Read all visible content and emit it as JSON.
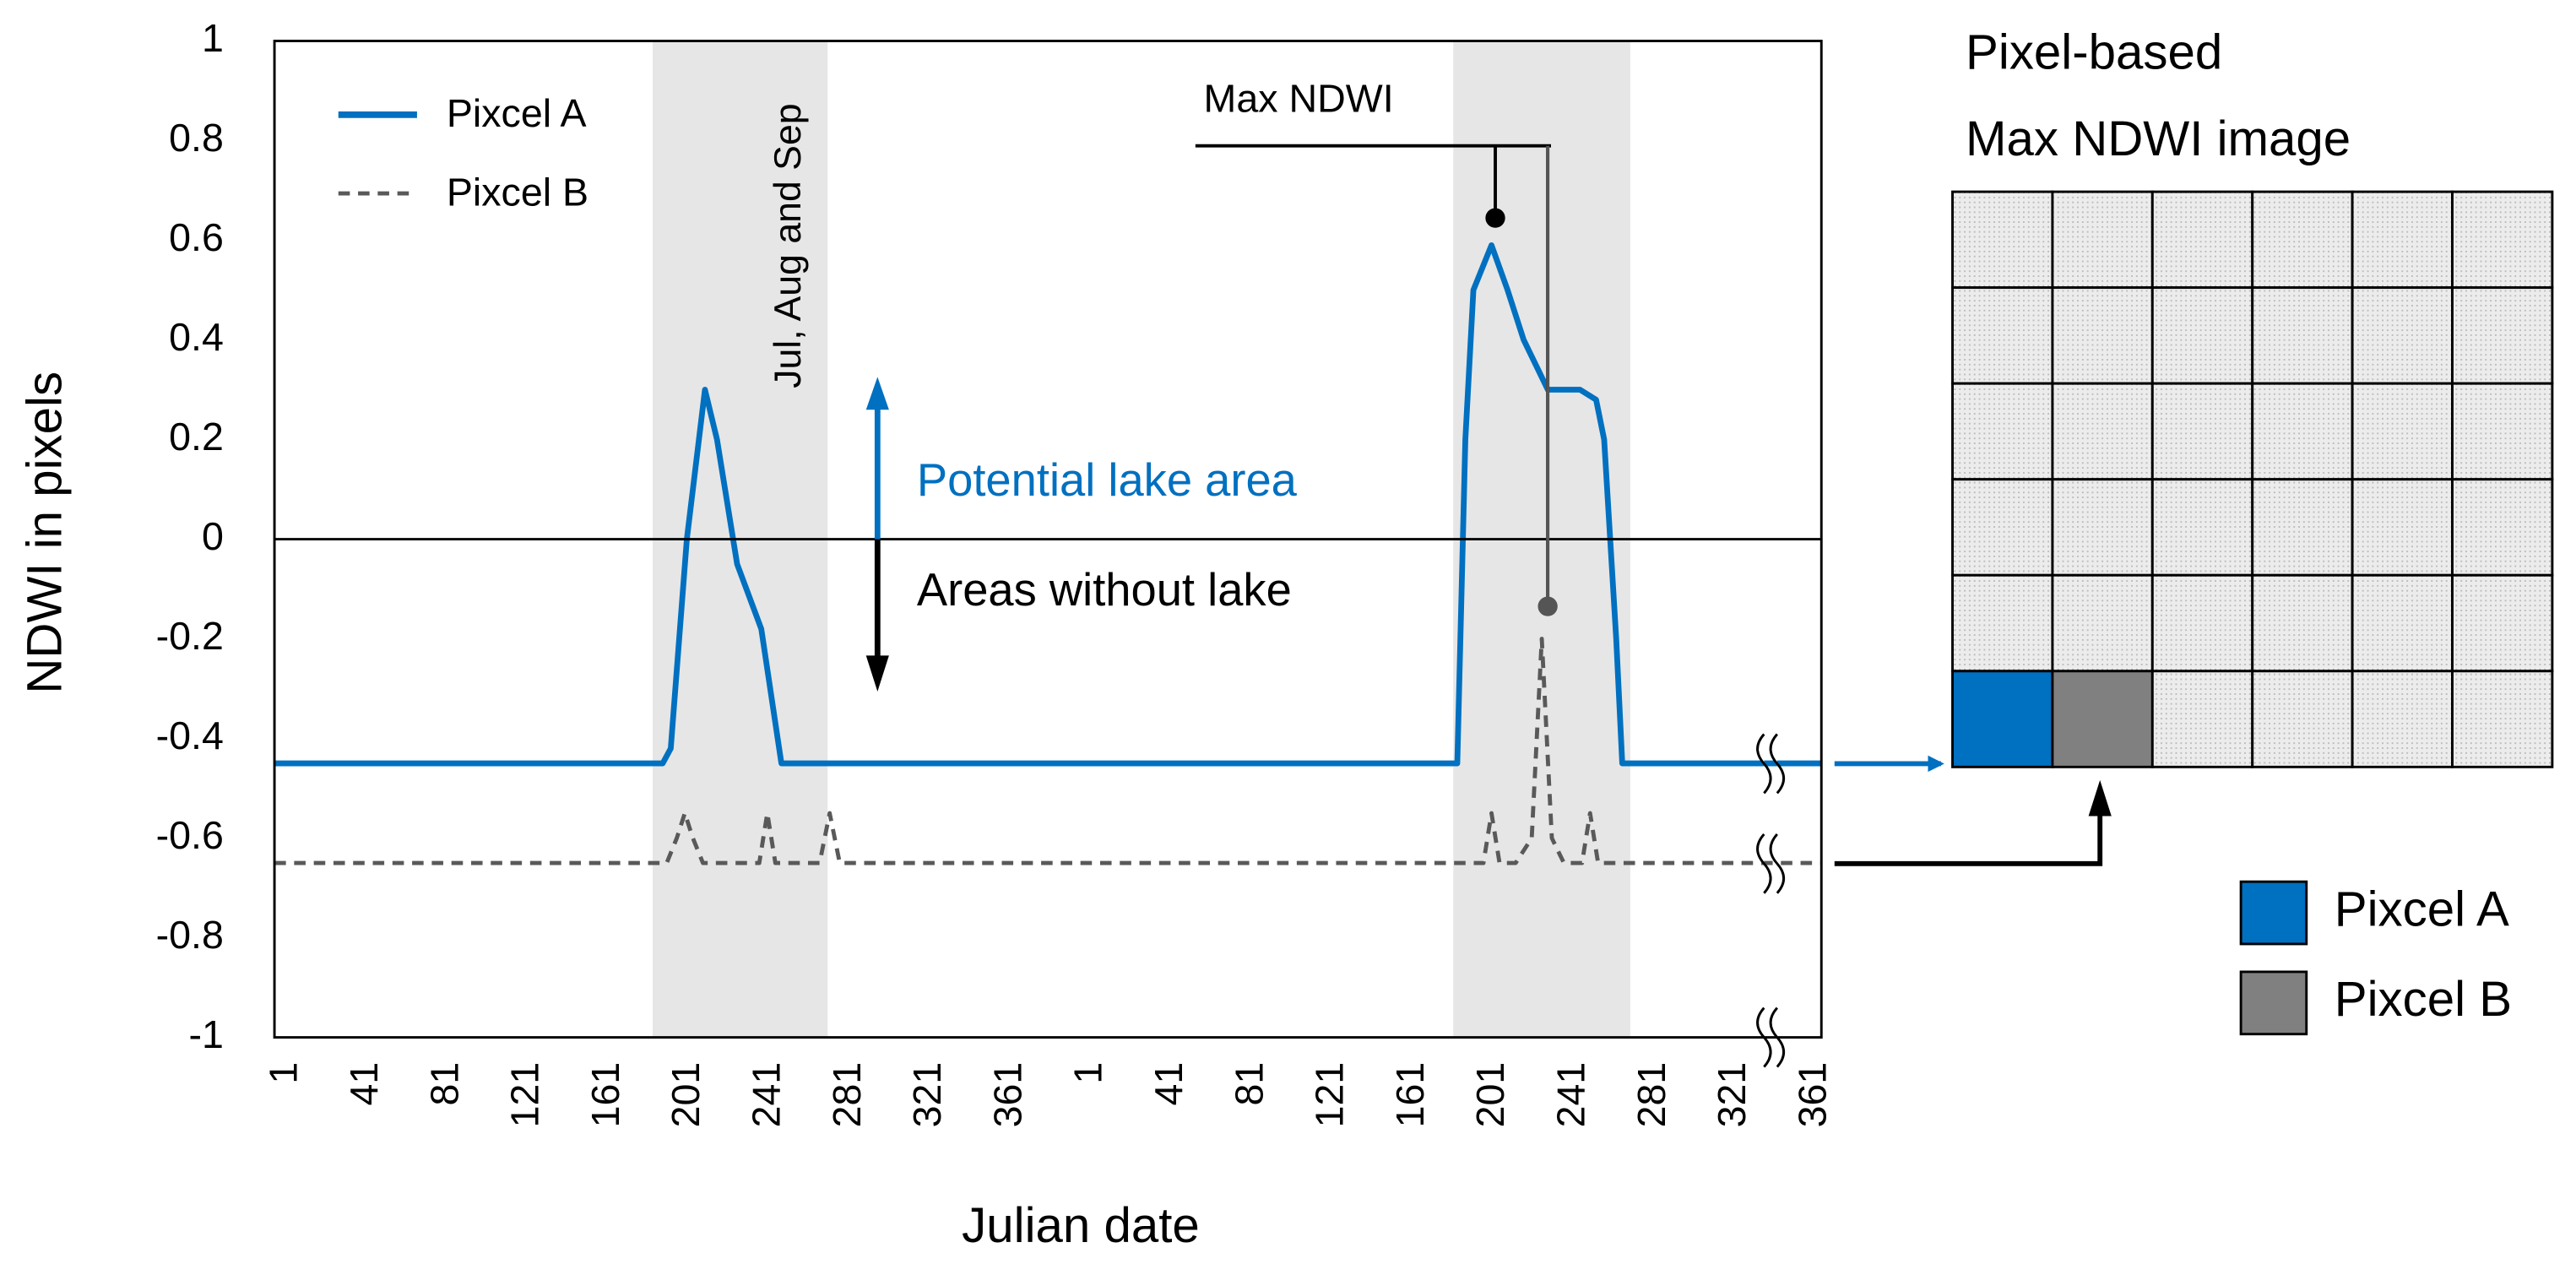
{
  "chart_data": {
    "type": "line",
    "xlabel": "Julian date",
    "ylabel": "NDWI in pixels",
    "xlim": [
      -5,
      764
    ],
    "ylim": [
      -1,
      1
    ],
    "yticks": [
      1,
      0.8,
      0.6,
      0.4,
      0.2,
      0,
      -0.2,
      -0.4,
      -0.6,
      -0.8,
      -1
    ],
    "xticks": [
      1,
      41,
      81,
      121,
      161,
      201,
      241,
      281,
      321,
      361,
      {
        "value": 401,
        "label": "1"
      },
      {
        "value": 441,
        "label": "41"
      },
      {
        "value": 481,
        "label": "81"
      },
      {
        "value": 521,
        "label": "121"
      },
      {
        "value": 561,
        "label": "161"
      },
      {
        "value": 601,
        "label": "201"
      },
      {
        "value": 641,
        "label": "241"
      },
      {
        "value": 681,
        "label": "281"
      },
      {
        "value": 721,
        "label": "321"
      },
      {
        "value": 761,
        "label": "361"
      }
    ],
    "highlight_label": "Jul, Aug and Sep",
    "highlight_ranges": [
      [
        183,
        270
      ],
      [
        581,
        669
      ]
    ],
    "highlight_color": "#e6e6e6",
    "annotations": [
      "Max NDWI",
      "Potential lake area",
      "Areas without lake"
    ],
    "image_title": [
      "Pixel-based",
      "Max NDWI image"
    ],
    "series": [
      {
        "name": "Pixcel A",
        "color": "#0070c0",
        "line_style": "solid",
        "x": [
          -5,
          188,
          192,
          200,
          209,
          215,
          225,
          237,
          247,
          253,
          579,
          583,
          587,
          591,
          600,
          608,
          616,
          628,
          644,
          652,
          656,
          662,
          665,
          669,
          764
        ],
        "values": [
          -0.45,
          -0.45,
          -0.42,
          0.0,
          0.3,
          0.2,
          -0.05,
          -0.18,
          -0.45,
          -0.45,
          -0.45,
          -0.45,
          0.2,
          0.5,
          0.59,
          0.5,
          0.4,
          0.3,
          0.3,
          0.28,
          0.2,
          -0.2,
          -0.45,
          -0.45,
          -0.45
        ]
      },
      {
        "name": "Pixcel B",
        "color": "#595959",
        "line_style": "dashed",
        "x": [
          -5,
          190,
          195,
          199,
          203,
          208,
          236,
          240,
          244,
          250,
          266,
          271,
          276,
          282,
          579,
          596,
          600,
          604,
          612,
          620,
          625,
          630,
          636,
          645,
          649,
          653,
          660,
          764
        ],
        "values": [
          -0.65,
          -0.65,
          -0.6,
          -0.55,
          -0.6,
          -0.65,
          -0.65,
          -0.55,
          -0.65,
          -0.65,
          -0.65,
          -0.55,
          -0.65,
          -0.65,
          -0.65,
          -0.65,
          -0.55,
          -0.65,
          -0.65,
          -0.6,
          -0.2,
          -0.6,
          -0.65,
          -0.65,
          -0.55,
          -0.65,
          -0.65,
          -0.65
        ]
      }
    ],
    "image_cell_colors": {
      "Pixcel A": "#0070c0",
      "Pixcel B": "#808080"
    }
  }
}
